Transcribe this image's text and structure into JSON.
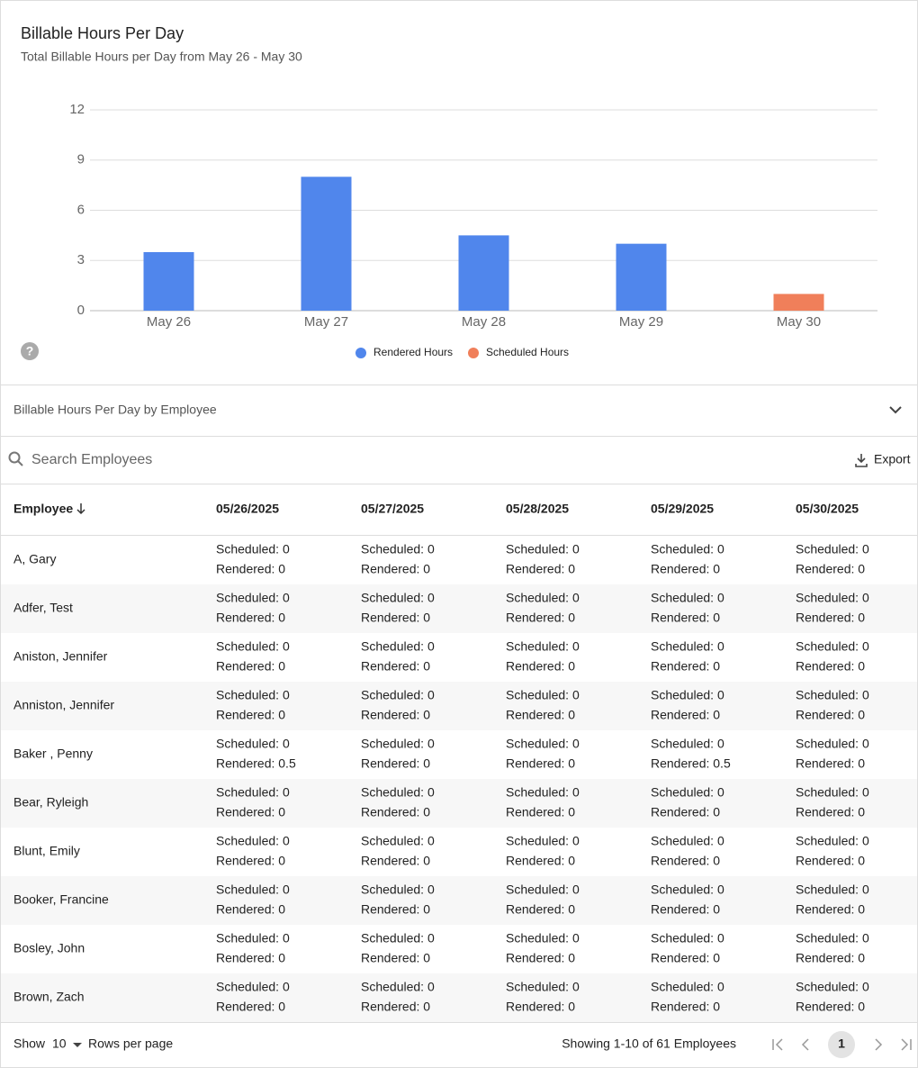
{
  "chart_data": {
    "type": "bar",
    "title": "Billable Hours Per Day",
    "subtitle": "Total Billable Hours per Day from May 26 - May 30",
    "categories": [
      "May 26",
      "May 27",
      "May 28",
      "May 29",
      "May 30"
    ],
    "series": [
      {
        "name": "Rendered Hours",
        "color": "#5086ec",
        "values": [
          3.5,
          8,
          4.5,
          4,
          null
        ]
      },
      {
        "name": "Scheduled Hours",
        "color": "#f07f5a",
        "values": [
          null,
          null,
          null,
          null,
          1
        ]
      }
    ],
    "stacked": true,
    "ylim": [
      0,
      12
    ],
    "yticks": [
      0,
      3,
      6,
      9,
      12
    ],
    "grid": true,
    "legend": "bottom"
  },
  "section": {
    "title": "Billable Hours Per Day by Employee"
  },
  "toolbar": {
    "search_placeholder": "Search Employees",
    "export": "Export"
  },
  "table": {
    "columns": [
      "Employee",
      "05/26/2025",
      "05/27/2025",
      "05/28/2025",
      "05/29/2025",
      "05/30/2025"
    ],
    "rows": [
      {
        "name": "A, Gary",
        "cells": [
          [
            "Scheduled: 0",
            "Rendered: 0"
          ],
          [
            "Scheduled: 0",
            "Rendered: 0"
          ],
          [
            "Scheduled: 0",
            "Rendered: 0"
          ],
          [
            "Scheduled: 0",
            "Rendered: 0"
          ],
          [
            "Scheduled: 0",
            "Rendered: 0"
          ]
        ]
      },
      {
        "name": "Adfer, Test",
        "cells": [
          [
            "Scheduled: 0",
            "Rendered: 0"
          ],
          [
            "Scheduled: 0",
            "Rendered: 0"
          ],
          [
            "Scheduled: 0",
            "Rendered: 0"
          ],
          [
            "Scheduled: 0",
            "Rendered: 0"
          ],
          [
            "Scheduled: 0",
            "Rendered: 0"
          ]
        ]
      },
      {
        "name": "Aniston, Jennifer",
        "cells": [
          [
            "Scheduled: 0",
            "Rendered: 0"
          ],
          [
            "Scheduled: 0",
            "Rendered: 0"
          ],
          [
            "Scheduled: 0",
            "Rendered: 0"
          ],
          [
            "Scheduled: 0",
            "Rendered: 0"
          ],
          [
            "Scheduled: 0",
            "Rendered: 0"
          ]
        ]
      },
      {
        "name": "Anniston, Jennifer",
        "cells": [
          [
            "Scheduled: 0",
            "Rendered: 0"
          ],
          [
            "Scheduled: 0",
            "Rendered: 0"
          ],
          [
            "Scheduled: 0",
            "Rendered: 0"
          ],
          [
            "Scheduled: 0",
            "Rendered: 0"
          ],
          [
            "Scheduled: 0",
            "Rendered: 0"
          ]
        ]
      },
      {
        "name": "Baker , Penny",
        "cells": [
          [
            "Scheduled: 0",
            "Rendered: 0.5"
          ],
          [
            "Scheduled: 0",
            "Rendered: 0"
          ],
          [
            "Scheduled: 0",
            "Rendered: 0"
          ],
          [
            "Scheduled: 0",
            "Rendered: 0.5"
          ],
          [
            "Scheduled: 0",
            "Rendered: 0"
          ]
        ]
      },
      {
        "name": "Bear, Ryleigh",
        "cells": [
          [
            "Scheduled: 0",
            "Rendered: 0"
          ],
          [
            "Scheduled: 0",
            "Rendered: 0"
          ],
          [
            "Scheduled: 0",
            "Rendered: 0"
          ],
          [
            "Scheduled: 0",
            "Rendered: 0"
          ],
          [
            "Scheduled: 0",
            "Rendered: 0"
          ]
        ]
      },
      {
        "name": "Blunt, Emily",
        "cells": [
          [
            "Scheduled: 0",
            "Rendered: 0"
          ],
          [
            "Scheduled: 0",
            "Rendered: 0"
          ],
          [
            "Scheduled: 0",
            "Rendered: 0"
          ],
          [
            "Scheduled: 0",
            "Rendered: 0"
          ],
          [
            "Scheduled: 0",
            "Rendered: 0"
          ]
        ]
      },
      {
        "name": "Booker, Francine",
        "cells": [
          [
            "Scheduled: 0",
            "Rendered: 0"
          ],
          [
            "Scheduled: 0",
            "Rendered: 0"
          ],
          [
            "Scheduled: 0",
            "Rendered: 0"
          ],
          [
            "Scheduled: 0",
            "Rendered: 0"
          ],
          [
            "Scheduled: 0",
            "Rendered: 0"
          ]
        ]
      },
      {
        "name": "Bosley, John",
        "cells": [
          [
            "Scheduled: 0",
            "Rendered: 0"
          ],
          [
            "Scheduled: 0",
            "Rendered: 0"
          ],
          [
            "Scheduled: 0",
            "Rendered: 0"
          ],
          [
            "Scheduled: 0",
            "Rendered: 0"
          ],
          [
            "Scheduled: 0",
            "Rendered: 0"
          ]
        ]
      },
      {
        "name": "Brown, Zach",
        "cells": [
          [
            "Scheduled: 0",
            "Rendered: 0"
          ],
          [
            "Scheduled: 0",
            "Rendered: 0"
          ],
          [
            "Scheduled: 0",
            "Rendered: 0"
          ],
          [
            "Scheduled: 0",
            "Rendered: 0"
          ],
          [
            "Scheduled: 0",
            "Rendered: 0"
          ]
        ]
      }
    ]
  },
  "footer": {
    "show": "Show",
    "rows_per_page_value": "10",
    "rows_per_page": "Rows per page",
    "summary": "Showing 1-10 of 61 Employees",
    "current_page": "1"
  }
}
